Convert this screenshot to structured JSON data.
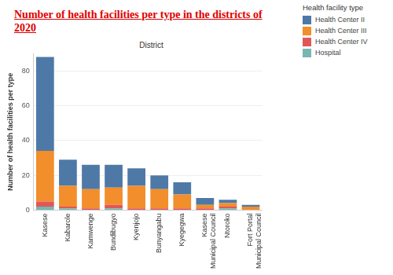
{
  "chart_data": {
    "type": "bar",
    "title": "Number of health facilities per type in the districts of 2020",
    "x_label": "District",
    "y_label": "Number of health facilities per type",
    "legend_title": "Health facility type",
    "categories": [
      "Kasese",
      "Kabarole",
      "Kamwenge",
      "Bundibugyo",
      "Kyenjojo",
      "Bunyangabu",
      "Kyegegwa",
      "Kasese Municipal Council",
      "Ntoroko",
      "Fort Portal Municipal Council"
    ],
    "series": [
      {
        "name": "Health Center II",
        "color": "#4e79a7",
        "values": [
          54,
          15,
          14,
          13,
          10,
          8,
          7,
          4,
          2,
          1
        ]
      },
      {
        "name": "Health Center III",
        "color": "#f28e2b",
        "values": [
          29,
          12,
          11,
          10,
          13,
          11,
          8,
          2,
          2,
          2
        ]
      },
      {
        "name": "Health Center IV",
        "color": "#e15759",
        "values": [
          3,
          1,
          1,
          2,
          1,
          1,
          1,
          1,
          1,
          0
        ]
      },
      {
        "name": "Hospital",
        "color": "#76b7b2",
        "values": [
          2,
          1,
          0,
          1,
          0,
          0,
          0,
          0,
          1,
          0
        ]
      }
    ],
    "stacked": true,
    "ylim": [
      0,
      90
    ],
    "yticks": [
      0,
      20,
      40,
      60,
      80
    ],
    "grid": "y",
    "legend": "top-right"
  }
}
